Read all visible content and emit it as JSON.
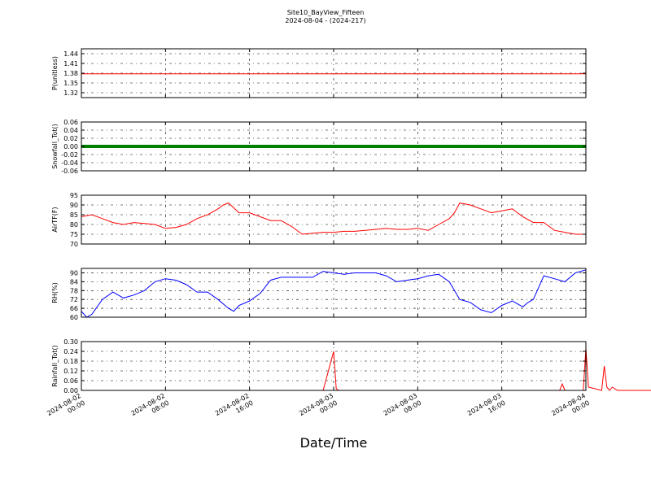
{
  "title": "Site10_BayView_Fifteen",
  "subtitle": "2024-08-04 - (2024-217)",
  "xlabel": "Date/Time",
  "x_ticks": [
    {
      "l1": "2024-08-02",
      "l2": "00:00"
    },
    {
      "l1": "2024-08-02",
      "l2": "08:00"
    },
    {
      "l1": "2024-08-02",
      "l2": "16:00"
    },
    {
      "l1": "2024-08-03",
      "l2": "00:00"
    },
    {
      "l1": "2024-08-03",
      "l2": "08:00"
    },
    {
      "l1": "2024-08-03",
      "l2": "16:00"
    },
    {
      "l1": "2024-08-04",
      "l2": "00:00"
    }
  ],
  "chart_data": [
    {
      "type": "line",
      "ylabel": "P(unitless)",
      "ylim": [
        1.305,
        1.455
      ],
      "yticks": [
        "1.32",
        "1.35",
        "1.38",
        "1.41",
        "1.44"
      ],
      "color": "#ff0000",
      "x": [
        "2024-08-02 00:00",
        "2024-08-04 00:00"
      ],
      "values": [
        1.378,
        1.378
      ],
      "grid": true
    },
    {
      "type": "scatter",
      "ylabel": "Snowfall_Tot()",
      "ylim": [
        -0.06,
        0.06
      ],
      "yticks": [
        "-0.06",
        "-0.04",
        "-0.02",
        "0.00",
        "0.02",
        "0.04",
        "0.06"
      ],
      "color": "#008000",
      "x": [
        "2024-08-02 00:00",
        "2024-08-04 00:00"
      ],
      "values": [
        0.0,
        0.0
      ],
      "grid": true
    },
    {
      "type": "line",
      "ylabel": "AirTF(F)",
      "ylim": [
        70,
        95
      ],
      "yticks": [
        "70",
        "75",
        "80",
        "85",
        "90",
        "95"
      ],
      "color": "#ff0000",
      "x": [
        "2024-08-02 00:00",
        "2024-08-02 01:00",
        "2024-08-02 02:00",
        "2024-08-02 03:00",
        "2024-08-02 04:00",
        "2024-08-02 05:00",
        "2024-08-02 06:00",
        "2024-08-02 07:00",
        "2024-08-02 08:00",
        "2024-08-02 09:00",
        "2024-08-02 10:00",
        "2024-08-02 11:00",
        "2024-08-02 12:00",
        "2024-08-02 13:00",
        "2024-08-02 13:30",
        "2024-08-02 14:00",
        "2024-08-02 15:00",
        "2024-08-02 16:00",
        "2024-08-02 17:00",
        "2024-08-02 18:00",
        "2024-08-02 19:00",
        "2024-08-02 20:00",
        "2024-08-02 21:00",
        "2024-08-02 22:00",
        "2024-08-02 23:00",
        "2024-08-03 00:00",
        "2024-08-03 01:00",
        "2024-08-03 02:00",
        "2024-08-03 03:00",
        "2024-08-03 04:00",
        "2024-08-03 05:00",
        "2024-08-03 06:00",
        "2024-08-03 07:00",
        "2024-08-03 08:00",
        "2024-08-03 09:00",
        "2024-08-03 10:00",
        "2024-08-03 11:00",
        "2024-08-03 11:30",
        "2024-08-03 12:00",
        "2024-08-03 13:00",
        "2024-08-03 14:00",
        "2024-08-03 15:00",
        "2024-08-03 16:00",
        "2024-08-03 17:00",
        "2024-08-03 18:00",
        "2024-08-03 19:00",
        "2024-08-03 20:00",
        "2024-08-03 21:00",
        "2024-08-03 22:00",
        "2024-08-03 23:00",
        "2024-08-04 00:00"
      ],
      "values": [
        84,
        85,
        83,
        81,
        80,
        81,
        80.5,
        80,
        78,
        78.5,
        80,
        83,
        85,
        88,
        90,
        91,
        86,
        86,
        84,
        82,
        82,
        79,
        75,
        75.5,
        76,
        76,
        76.5,
        76.5,
        77,
        77.5,
        78,
        77.5,
        77.5,
        78,
        77,
        80,
        83,
        86,
        91,
        90,
        88,
        86,
        87,
        88,
        84,
        81,
        81,
        77,
        76,
        75,
        75
      ],
      "grid": true
    },
    {
      "type": "line",
      "ylabel": "RH(%)",
      "ylim": [
        60,
        93
      ],
      "yticks": [
        "60",
        "66",
        "72",
        "78",
        "84",
        "90"
      ],
      "color": "#0000ff",
      "x": [
        "2024-08-02 00:00",
        "2024-08-02 00:30",
        "2024-08-02 01:00",
        "2024-08-02 02:00",
        "2024-08-02 03:00",
        "2024-08-02 04:00",
        "2024-08-02 05:00",
        "2024-08-02 06:00",
        "2024-08-02 07:00",
        "2024-08-02 08:00",
        "2024-08-02 09:00",
        "2024-08-02 10:00",
        "2024-08-02 11:00",
        "2024-08-02 12:00",
        "2024-08-02 13:00",
        "2024-08-02 14:00",
        "2024-08-02 14:30",
        "2024-08-02 15:00",
        "2024-08-02 16:00",
        "2024-08-02 17:00",
        "2024-08-02 18:00",
        "2024-08-02 19:00",
        "2024-08-02 20:00",
        "2024-08-02 21:00",
        "2024-08-02 22:00",
        "2024-08-02 23:00",
        "2024-08-03 00:00",
        "2024-08-03 01:00",
        "2024-08-03 02:00",
        "2024-08-03 03:00",
        "2024-08-03 04:00",
        "2024-08-03 05:00",
        "2024-08-03 06:00",
        "2024-08-03 07:00",
        "2024-08-03 08:00",
        "2024-08-03 09:00",
        "2024-08-03 10:00",
        "2024-08-03 11:00",
        "2024-08-03 12:00",
        "2024-08-03 12:30",
        "2024-08-03 13:00",
        "2024-08-03 14:00",
        "2024-08-03 15:00",
        "2024-08-03 16:00",
        "2024-08-03 17:00",
        "2024-08-03 18:00",
        "2024-08-03 18:30",
        "2024-08-03 19:00",
        "2024-08-03 20:00",
        "2024-08-03 21:00",
        "2024-08-03 22:00",
        "2024-08-03 23:00",
        "2024-08-04 00:00"
      ],
      "values": [
        64,
        60,
        62,
        72,
        77,
        73,
        75,
        78,
        84,
        86,
        85,
        82,
        77,
        77,
        72,
        66,
        64,
        68,
        71,
        76,
        85,
        87,
        87,
        87,
        87,
        91,
        90,
        89,
        90,
        90,
        90,
        88,
        84,
        85,
        86,
        88,
        89,
        84,
        72,
        71,
        70,
        65,
        63,
        68,
        71,
        67,
        70,
        72,
        88,
        86,
        84,
        90,
        92
      ],
      "grid": true
    },
    {
      "type": "line",
      "ylabel": "Rainfall_Tot()",
      "ylim": [
        0,
        0.3
      ],
      "yticks": [
        "0.00",
        "0.06",
        "0.12",
        "0.18",
        "0.24",
        "0.30"
      ],
      "color": "#ff0000",
      "x": [
        "2024-08-02 00:00",
        "2024-08-02 23:00",
        "2024-08-03 00:00",
        "2024-08-03 00:15",
        "2024-08-03 00:30",
        "2024-08-03 21:30",
        "2024-08-03 21:45",
        "2024-08-03 22:00",
        "2024-08-03 23:45",
        "2024-08-04 00:00",
        "2024-08-04 00:15",
        "2024-08-04 01:30",
        "2024-08-04 01:45",
        "2024-08-04 02:00",
        "2024-08-04 02:15",
        "2024-08-04 02:30",
        "2024-08-04 03:00",
        "2024-08-04 03:15",
        "2024-08-04 03:30",
        "2024-08-04 04:00",
        "2024-08-04 08:00"
      ],
      "values": [
        0,
        0,
        0.24,
        0.01,
        0,
        0,
        0.04,
        0,
        0,
        0.26,
        0.02,
        0,
        0.15,
        0.02,
        0,
        0.02,
        0,
        0,
        0,
        0,
        0
      ],
      "grid": true
    }
  ]
}
